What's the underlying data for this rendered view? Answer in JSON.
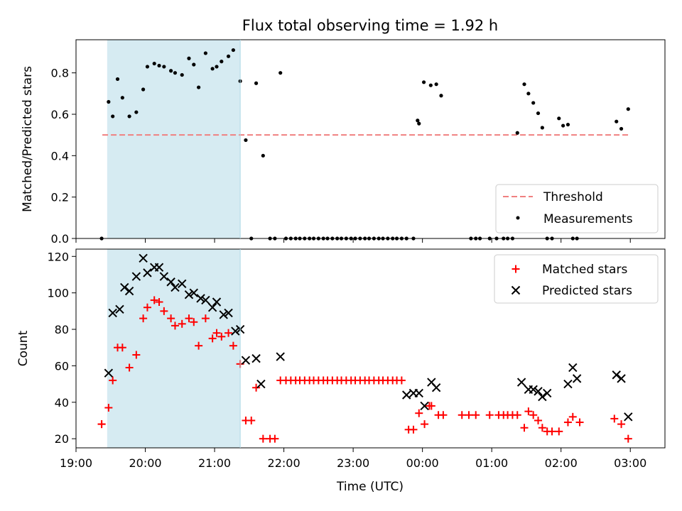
{
  "figure": {
    "title": "Flux total observing time = 1.92 h",
    "xlabel": "Time (UTC)"
  },
  "colors": {
    "threshold": "#f08080",
    "span": "#add8e6",
    "matched": "#ff0000",
    "predicted": "#000000",
    "measurements": "#000000"
  },
  "chart_data": [
    {
      "type": "scatter",
      "ylabel": "Matched/Predicted stars",
      "x_unit": "hours after 19:00 UTC",
      "xlim": [
        19.0,
        27.5
      ],
      "ylim": [
        0.0,
        0.96
      ],
      "yticks": [
        "0.0",
        "0.2",
        "0.4",
        "0.6",
        "0.8"
      ],
      "highlight_span": [
        19.45,
        21.37
      ],
      "legend": {
        "position": "lower-right",
        "entries": [
          "Threshold",
          "Measurements"
        ]
      },
      "threshold": {
        "name": "Threshold",
        "y": 0.5,
        "x_range": [
          19.38,
          26.97
        ]
      },
      "series": [
        {
          "name": "Measurements",
          "x": [
            19.37,
            19.47,
            19.53,
            19.6,
            19.67,
            19.77,
            19.87,
            19.97,
            20.03,
            20.13,
            20.2,
            20.27,
            20.37,
            20.43,
            20.53,
            20.63,
            20.7,
            20.77,
            20.87,
            20.97,
            21.03,
            21.1,
            21.2,
            21.27,
            21.37,
            21.45,
            21.53,
            21.6,
            21.7,
            21.8,
            21.87,
            21.95,
            22.03,
            22.1,
            22.17,
            22.23,
            22.3,
            22.37,
            22.43,
            22.5,
            22.57,
            22.63,
            22.7,
            22.77,
            22.83,
            22.9,
            22.97,
            23.03,
            23.1,
            23.17,
            23.23,
            23.3,
            23.37,
            23.43,
            23.5,
            23.57,
            23.63,
            23.7,
            23.77,
            23.87,
            23.93,
            23.95,
            24.02,
            24.12,
            24.2,
            24.27,
            24.7,
            24.77,
            24.83,
            24.97,
            25.07,
            25.17,
            25.23,
            25.3,
            25.37,
            25.47,
            25.53,
            25.6,
            25.67,
            25.73,
            25.8,
            25.87,
            25.97,
            26.03,
            26.1,
            26.17,
            26.23,
            26.8,
            26.87,
            26.97
          ],
          "y": [
            0.0,
            0.66,
            0.59,
            0.77,
            0.68,
            0.59,
            0.61,
            0.72,
            0.83,
            0.845,
            0.835,
            0.83,
            0.81,
            0.8,
            0.79,
            0.87,
            0.84,
            0.73,
            0.895,
            0.82,
            0.83,
            0.855,
            0.88,
            0.91,
            0.76,
            0.475,
            0.0,
            0.75,
            0.4,
            0.0,
            0.0,
            0.8,
            0.0,
            0.0,
            0.0,
            0.0,
            0.0,
            0.0,
            0.0,
            0.0,
            0.0,
            0.0,
            0.0,
            0.0,
            0.0,
            0.0,
            0.0,
            0.0,
            0.0,
            0.0,
            0.0,
            0.0,
            0.0,
            0.0,
            0.0,
            0.0,
            0.0,
            0.0,
            0.0,
            0.0,
            0.57,
            0.555,
            0.755,
            0.74,
            0.745,
            0.69,
            0.0,
            0.0,
            0.0,
            0.0,
            0.0,
            0.0,
            0.0,
            0.0,
            0.51,
            0.745,
            0.7,
            0.655,
            0.605,
            0.535,
            0.0,
            0.0,
            0.58,
            0.545,
            0.55,
            0.0,
            0.0,
            0.565,
            0.53,
            0.625
          ]
        }
      ]
    },
    {
      "type": "scatter",
      "ylabel": "Count",
      "x_unit": "hours after 19:00 UTC",
      "xlim": [
        19.0,
        27.5
      ],
      "ylim": [
        15,
        124
      ],
      "yticks": [
        "20",
        "40",
        "60",
        "80",
        "100",
        "120"
      ],
      "xticks": [
        "19:00",
        "20:00",
        "21:00",
        "22:00",
        "23:00",
        "00:00",
        "01:00",
        "02:00",
        "03:00"
      ],
      "highlight_span": [
        19.45,
        21.37
      ],
      "legend": {
        "position": "top-right",
        "entries": [
          "Matched stars",
          "Predicted stars"
        ]
      },
      "series": [
        {
          "name": "Matched stars",
          "marker": "plus",
          "x": [
            19.37,
            19.37,
            19.47,
            19.53,
            19.6,
            19.67,
            19.77,
            19.87,
            19.97,
            20.03,
            20.13,
            20.2,
            20.27,
            20.37,
            20.43,
            20.53,
            20.63,
            20.7,
            20.77,
            20.87,
            20.97,
            21.03,
            21.1,
            21.2,
            21.27,
            21.37,
            21.45,
            21.53,
            21.6,
            21.7,
            21.8,
            21.87,
            21.95,
            22.03,
            22.1,
            22.17,
            22.23,
            22.3,
            22.37,
            22.43,
            22.5,
            22.57,
            22.63,
            22.7,
            22.77,
            22.83,
            22.9,
            22.97,
            23.03,
            23.1,
            23.17,
            23.23,
            23.3,
            23.37,
            23.43,
            23.5,
            23.57,
            23.63,
            23.7,
            23.8,
            23.87,
            23.95,
            24.03,
            24.1,
            24.13,
            24.23,
            24.3,
            24.57,
            24.67,
            24.77,
            24.97,
            25.1,
            25.17,
            25.23,
            25.3,
            25.37,
            25.47,
            25.53,
            25.6,
            25.67,
            25.73,
            25.8,
            25.87,
            25.97,
            26.1,
            26.17,
            26.27,
            26.77,
            26.87,
            26.97
          ],
          "y": [
            28,
            28,
            37,
            52,
            70,
            70,
            59,
            66,
            86,
            92,
            96,
            95,
            90,
            86,
            82,
            83,
            86,
            84,
            71,
            86,
            75,
            78,
            76,
            78,
            71,
            61,
            30,
            30,
            48,
            20,
            20,
            20,
            52,
            52,
            52,
            52,
            52,
            52,
            52,
            52,
            52,
            52,
            52,
            52,
            52,
            52,
            52,
            52,
            52,
            52,
            52,
            52,
            52,
            52,
            52,
            52,
            52,
            52,
            52,
            25,
            25,
            34,
            28,
            38,
            38,
            33,
            33,
            33,
            33,
            33,
            33,
            33,
            33,
            33,
            33,
            33,
            26,
            35,
            33,
            30,
            26,
            24,
            24,
            24,
            29,
            32,
            29,
            31,
            28,
            20
          ]
        },
        {
          "name": "Predicted stars",
          "marker": "x",
          "x": [
            19.47,
            19.53,
            19.63,
            19.7,
            19.77,
            19.87,
            19.97,
            20.03,
            20.13,
            20.2,
            20.27,
            20.37,
            20.43,
            20.53,
            20.63,
            20.7,
            20.8,
            20.87,
            20.97,
            21.03,
            21.13,
            21.2,
            21.3,
            21.37,
            21.45,
            21.6,
            21.67,
            21.95,
            23.77,
            23.87,
            23.95,
            24.03,
            24.13,
            24.2,
            25.43,
            25.53,
            25.6,
            25.67,
            25.73,
            25.8,
            26.1,
            26.17,
            26.23,
            26.8,
            26.87,
            26.97
          ],
          "y": [
            56,
            89,
            91,
            103,
            101,
            109,
            119,
            111,
            114,
            114,
            109,
            106,
            103,
            105,
            99,
            100,
            97,
            96,
            92,
            95,
            88,
            89,
            79,
            80,
            63,
            64,
            50,
            65,
            44,
            45,
            45,
            38,
            51,
            48,
            51,
            47,
            47,
            46,
            43,
            45,
            50,
            59,
            53,
            55,
            53,
            32
          ]
        }
      ]
    }
  ]
}
